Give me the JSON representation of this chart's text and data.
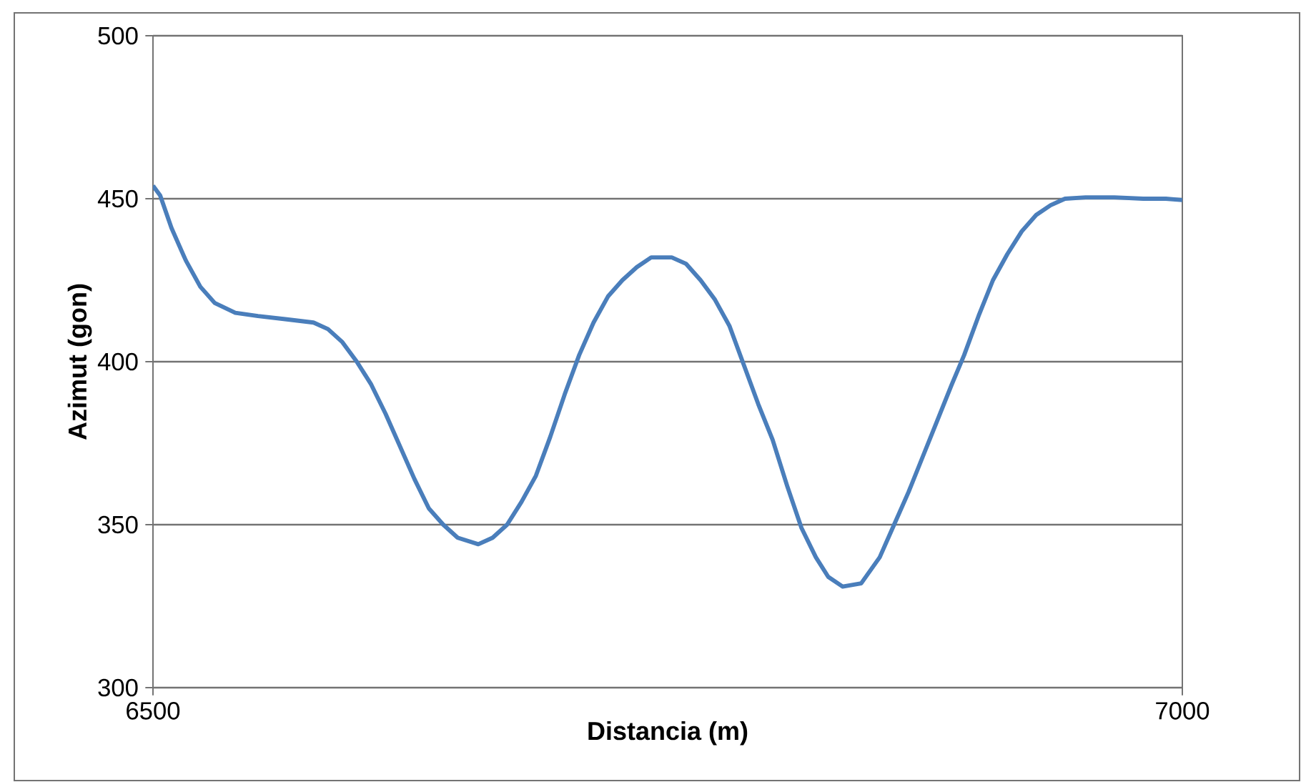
{
  "chart_data": {
    "type": "line",
    "xlabel": "Distancia (m)",
    "ylabel": "Azimut (gon)",
    "xlim": [
      6500,
      7000
    ],
    "xticks": [
      6500,
      7000
    ],
    "ylim": [
      300,
      500
    ],
    "yticks": [
      300,
      350,
      400,
      450,
      500
    ],
    "grid": "y",
    "series": [
      {
        "color": "#4a7ebb",
        "x": [
          6500,
          6503.5,
          6509,
          6516,
          6523,
          6530,
          6540,
          6551,
          6565,
          6578,
          6585,
          6592,
          6599,
          6606,
          6613,
          6620,
          6627,
          6634,
          6641,
          6648,
          6658,
          6665,
          6672,
          6679,
          6686,
          6693,
          6700,
          6707,
          6714,
          6721,
          6728,
          6735,
          6742,
          6752,
          6759,
          6766,
          6773,
          6780,
          6787,
          6794,
          6801,
          6808,
          6815,
          6822,
          6828,
          6835,
          6844,
          6853,
          6860,
          6867,
          6874,
          6881,
          6888,
          6894,
          6901,
          6908,
          6915,
          6922,
          6929,
          6936,
          6943,
          6953,
          6967,
          6981,
          6992,
          7000
        ],
        "values": [
          454,
          451,
          441,
          431,
          423,
          418,
          415,
          414,
          413,
          412,
          410,
          406,
          400,
          393,
          384,
          374,
          364,
          355,
          350,
          346,
          344,
          346,
          350,
          357,
          365,
          377,
          390,
          402,
          412,
          420,
          425,
          429,
          432,
          432,
          430,
          425,
          419,
          411,
          399,
          387,
          376,
          362,
          349,
          340,
          334,
          331,
          332,
          340,
          350,
          360,
          371,
          382,
          393,
          402,
          414,
          425,
          433,
          440,
          445,
          448,
          450,
          450.4,
          450.4,
          450,
          450,
          449.6
        ]
      }
    ]
  }
}
